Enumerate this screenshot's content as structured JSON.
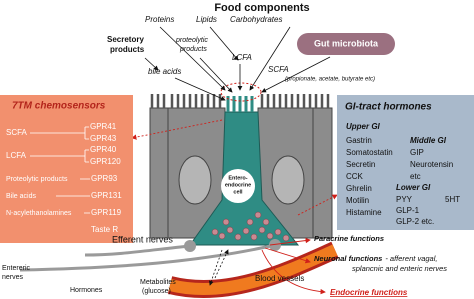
{
  "header": {
    "title": "Food components",
    "items": [
      "Proteins",
      "Lipids",
      "Carbohydrates"
    ]
  },
  "secretory_products": [
    "Secretory",
    "products"
  ],
  "proteolytic_products": [
    "proteolytic",
    "products"
  ],
  "lcfa": "LCFA",
  "gut_microbiota": "Gut microbiota",
  "bile_acids": "bile acids",
  "scfa": {
    "label": "SCFA",
    "detail": "(propionate, acetate, butyrate etc)"
  },
  "chemosensors": {
    "title": "7TM chemosensors",
    "rows": [
      {
        "ligand": "SCFA",
        "receptors": [
          "GPR41",
          "GPR43"
        ]
      },
      {
        "ligand": "LCFA",
        "receptors": [
          "GPR40",
          "GPR120"
        ]
      },
      {
        "ligand": "Proteolytic products",
        "receptors": [
          "GPR93"
        ]
      },
      {
        "ligand": "Bile acids",
        "receptors": [
          "GPR131"
        ]
      },
      {
        "ligand": "N-acylethanolamines",
        "receptors": [
          "GPR119"
        ]
      },
      {
        "receptors": [
          "Taste R"
        ]
      }
    ]
  },
  "hormones": {
    "title": "GI-tract hormones",
    "upper": {
      "label": "Upper GI",
      "items": [
        "Gastrin",
        "Somatostatin",
        "Secretin",
        "CCK",
        "Ghrelin",
        "Motilin",
        "Histamine"
      ]
    },
    "middle": {
      "label": "Middle GI",
      "items": [
        "GIP",
        "Neurotensin",
        "etc"
      ]
    },
    "lower": {
      "label": "Lower GI",
      "items": [
        "PYY",
        "GLP-1",
        "GLP-2 etc."
      ]
    },
    "other": "5HT"
  },
  "cell_label": [
    "Entero-",
    "endocrine",
    "cell"
  ],
  "efferent_nerves": "Efferent nerves",
  "enteric_nerves": [
    "Entereric",
    "nerves"
  ],
  "hormones_label": "Hormones",
  "metabolites": [
    "Metabolites",
    "(glucose)"
  ],
  "blood_vessels": "Blood vessels",
  "functions": {
    "paracrine": "Paracrine functions",
    "neuronal": [
      "Neuronal functions",
      "- afferent vagal,",
      "splancnic and enteric nerves"
    ],
    "endocrine": "Endocrine functions"
  }
}
